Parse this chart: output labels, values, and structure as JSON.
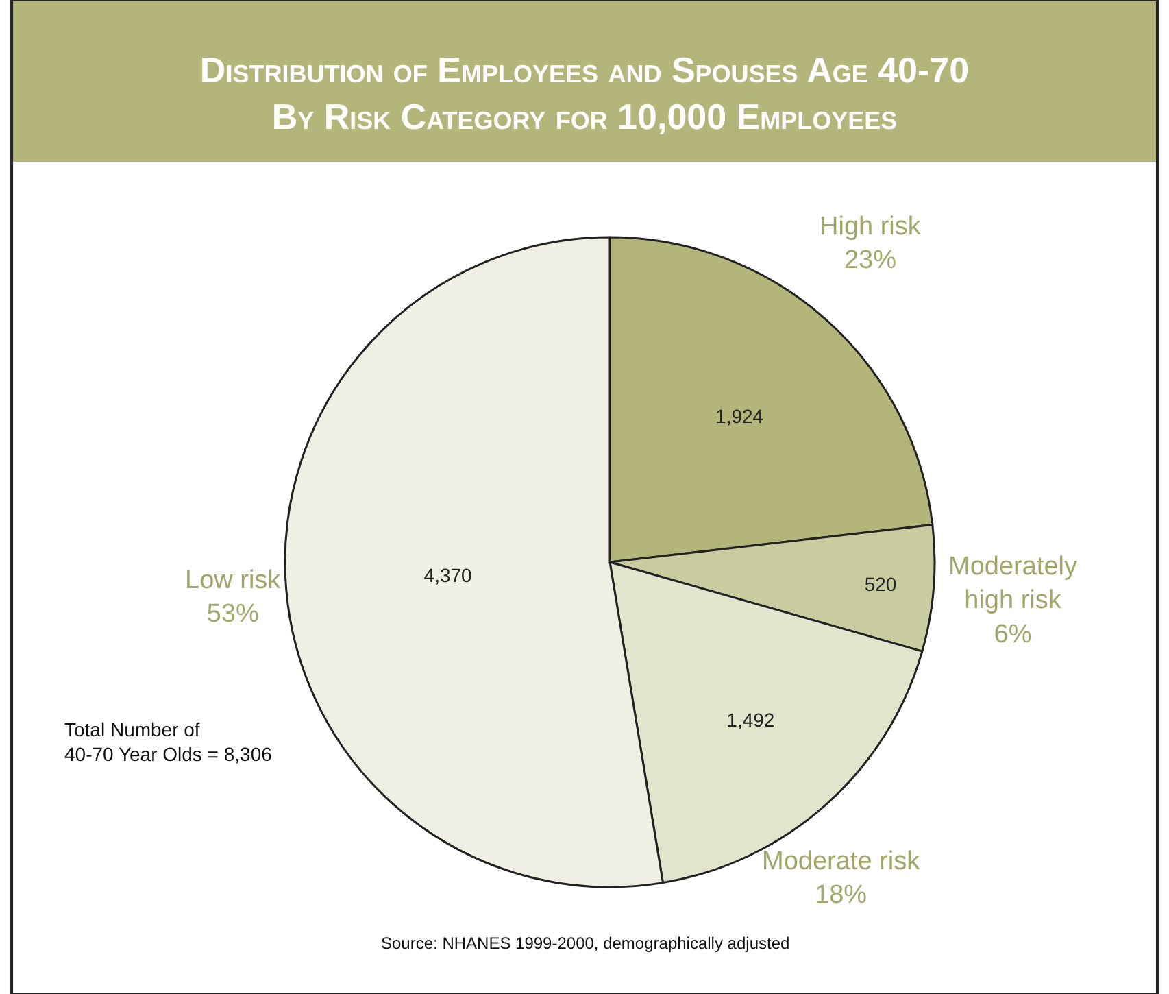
{
  "chart_data": {
    "type": "pie",
    "title": "Distribution of Employees and Spouses Age 40-70\nBy Risk Category for 10,000 Employees",
    "categories": [
      "High risk",
      "Moderately high risk",
      "Moderate risk",
      "Low risk"
    ],
    "values": [
      1924,
      520,
      1492,
      4370
    ],
    "value_labels": [
      "1,924",
      "520",
      "1,492",
      "4,370"
    ],
    "colors": [
      "#b3b57a",
      "#c9cca0",
      "#e2e5cc",
      "#eff0e3"
    ],
    "annotations": [
      "23%",
      "6%",
      "18%",
      "53%",
      "Total Number of 40-70 Year Olds = 8,306",
      "Source: NHANES 1999-2000, demographically adjusted"
    ],
    "legend": false
  }
}
